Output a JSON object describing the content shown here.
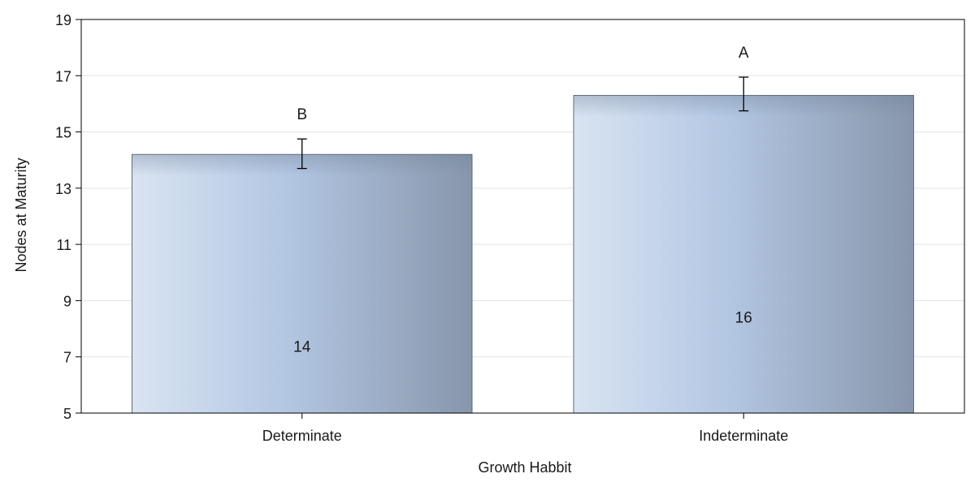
{
  "chart_data": {
    "type": "bar",
    "title": "",
    "xlabel": "Growth Habbit",
    "ylabel": "Nodes at Maturity",
    "categories": [
      "Determinate",
      "Indeterminate"
    ],
    "values": [
      14.2,
      16.3
    ],
    "value_labels": [
      "14",
      "16"
    ],
    "error_bars": [
      {
        "low": 13.7,
        "high": 14.75
      },
      {
        "low": 15.75,
        "high": 16.95
      }
    ],
    "group_letters": [
      "B",
      "A"
    ],
    "ylim": [
      5,
      19
    ],
    "yticks": [
      "5",
      "7",
      "9",
      "11",
      "13",
      "15",
      "17",
      "19"
    ],
    "grid": "horizontal",
    "colors": {
      "bar_light": "#d9e4f2",
      "bar_mid": "#b3c7e3",
      "bar_dark": "#8796ab",
      "bar_stroke": "#5f6b7a",
      "grid": "#e3e3e3",
      "axis": "#000000"
    }
  }
}
